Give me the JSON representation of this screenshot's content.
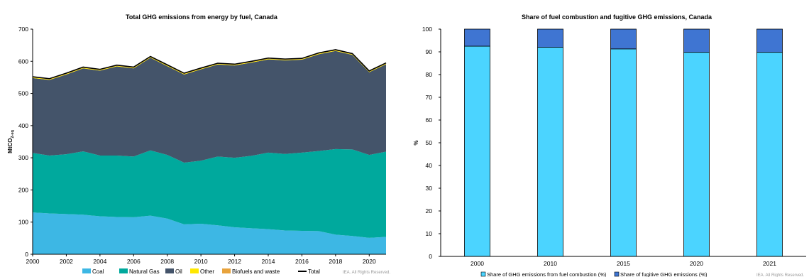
{
  "chart_data": [
    {
      "type": "area",
      "title": "Total GHG emissions from energy by fuel, Canada",
      "ylabel": "MtCO",
      "ylabel_sub": "2-eq",
      "xlabel": "",
      "ylim": [
        0,
        700
      ],
      "yticks": [
        0,
        100,
        200,
        300,
        400,
        500,
        600,
        700
      ],
      "xticks": [
        2000,
        2002,
        2004,
        2006,
        2008,
        2010,
        2012,
        2014,
        2016,
        2018,
        2020
      ],
      "x": [
        2000,
        2001,
        2002,
        2003,
        2004,
        2005,
        2006,
        2007,
        2008,
        2009,
        2010,
        2011,
        2012,
        2013,
        2014,
        2015,
        2016,
        2017,
        2018,
        2019,
        2020,
        2021
      ],
      "stacked": true,
      "series": [
        {
          "name": "Coal",
          "color": "#3DB7E4",
          "values": [
            130,
            127,
            125,
            123,
            118,
            116,
            115,
            120,
            111,
            93,
            95,
            90,
            84,
            81,
            78,
            74,
            73,
            72,
            61,
            57,
            51,
            54
          ]
        },
        {
          "name": "Natural Gas",
          "color": "#00A99D",
          "values": [
            185,
            180,
            186,
            197,
            189,
            191,
            189,
            203,
            198,
            192,
            196,
            214,
            216,
            225,
            238,
            238,
            243,
            249,
            266,
            269,
            258,
            265
          ]
        },
        {
          "name": "Oil",
          "color": "#44546A",
          "values": [
            233,
            235,
            248,
            258,
            264,
            277,
            274,
            288,
            276,
            274,
            284,
            286,
            287,
            290,
            290,
            291,
            289,
            301,
            305,
            294,
            257,
            272
          ]
        },
        {
          "name": "Other",
          "color": "#FFE800",
          "values": [
            2,
            2,
            2,
            2,
            2,
            2,
            2,
            2,
            2,
            2,
            2,
            2,
            2,
            2,
            2,
            2,
            2,
            2,
            2,
            2,
            2,
            2
          ]
        },
        {
          "name": "Biofuels and waste",
          "color": "#E8A33C",
          "values": [
            2,
            2,
            2,
            2,
            2,
            2,
            2,
            2,
            2,
            2,
            2,
            2,
            2,
            2,
            2,
            2,
            2,
            2,
            2,
            2,
            2,
            2
          ]
        }
      ],
      "total": {
        "name": "Total",
        "color": "#000000",
        "values": [
          552,
          546,
          563,
          582,
          575,
          588,
          582,
          615,
          589,
          563,
          579,
          594,
          591,
          600,
          610,
          607,
          609,
          626,
          636,
          624,
          570,
          595
        ]
      },
      "credit": "IEA. All Rights Reserved."
    },
    {
      "type": "bar",
      "stacked": true,
      "title": "Share of fuel combustion and fugitive GHG emissions, Canada",
      "ylabel": "%",
      "xlabel": "",
      "ylim": [
        0,
        100
      ],
      "yticks": [
        0,
        10,
        20,
        30,
        40,
        50,
        60,
        70,
        80,
        90,
        100
      ],
      "categories": [
        "2000",
        "2010",
        "2015",
        "2020",
        "2021"
      ],
      "series": [
        {
          "name": "Share of GHG emissions from fuel combustion (%)",
          "color": "#4BD4FF",
          "values": [
            92.5,
            92.0,
            91.3,
            89.8,
            89.8
          ]
        },
        {
          "name": "Share of fugitive GHG emissions (%)",
          "color": "#3F75D2",
          "values": [
            7.5,
            8.0,
            8.7,
            10.2,
            10.2
          ]
        }
      ],
      "credit": "IEA. All Rights Reserved."
    }
  ]
}
